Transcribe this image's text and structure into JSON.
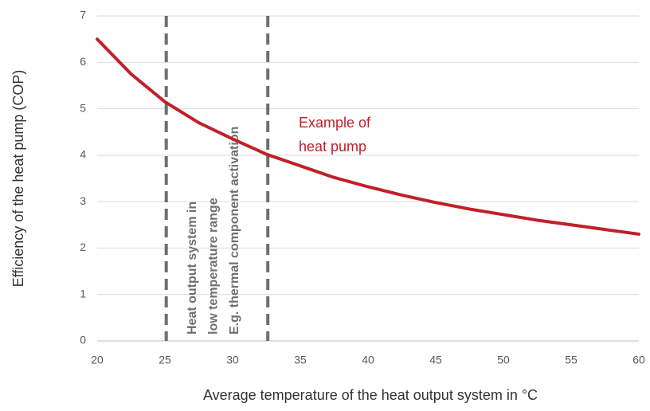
{
  "chart_data": {
    "type": "line",
    "xlabel": "Average temperature of the heat output system in °C",
    "ylabel": "Efficiency of the heat pump (COP)",
    "x": [
      20,
      22.5,
      25,
      27.5,
      30,
      32.5,
      35,
      37.5,
      40,
      42.5,
      45,
      47.5,
      50,
      52.5,
      55,
      57.5,
      60
    ],
    "series": [
      {
        "color": "#c0202a",
        "values": [
          6.5,
          5.75,
          5.15,
          4.7,
          4.35,
          4.02,
          3.77,
          3.52,
          3.32,
          3.14,
          2.98,
          2.84,
          2.72,
          2.6,
          2.5,
          2.4,
          2.3
        ]
      }
    ],
    "series_label": [
      "Example of",
      "heat pump"
    ],
    "vlines": [
      25.1,
      32.6
    ],
    "vline_color": "#6f6f6f",
    "notes": [
      "Heat output system in",
      "low temperature range",
      "E.g. thermal component activation"
    ],
    "xlim": [
      20,
      60
    ],
    "xticks": [
      20,
      25,
      30,
      35,
      40,
      45,
      50,
      55,
      60
    ],
    "ylim": [
      0,
      7
    ],
    "yticks": [
      0,
      1,
      2,
      3,
      4,
      5,
      6,
      7
    ],
    "grid": true
  }
}
